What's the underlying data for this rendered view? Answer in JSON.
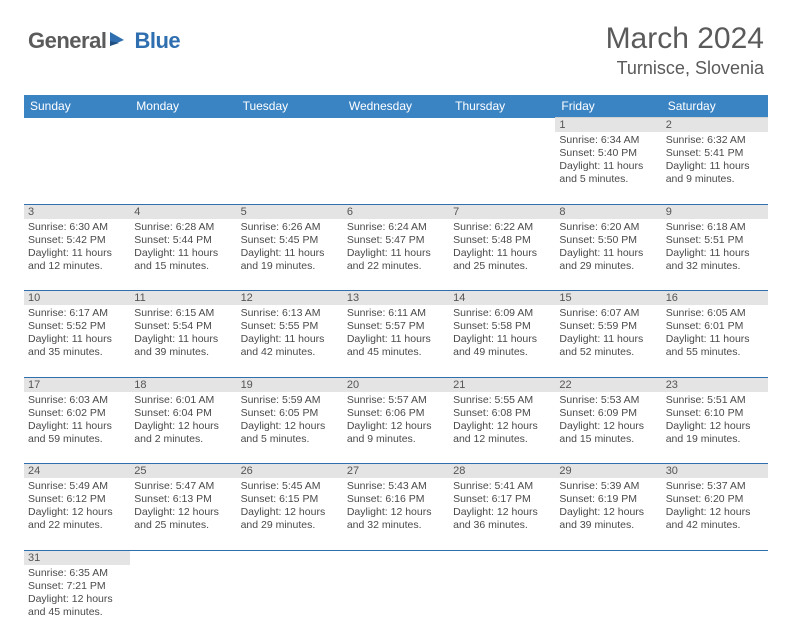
{
  "brand": {
    "part1": "General",
    "part2": "Blue"
  },
  "title": "March 2024",
  "location": "Turnisce, Slovenia",
  "colors": {
    "header_bg": "#3b84c4",
    "header_text": "#ffffff",
    "daynum_bg": "#e4e4e4",
    "row_divider": "#2f6fb0",
    "text": "#4a4a4a",
    "brand_dark": "#5b5b5b",
    "brand_blue": "#2f6fb0"
  },
  "day_headers": [
    "Sunday",
    "Monday",
    "Tuesday",
    "Wednesday",
    "Thursday",
    "Friday",
    "Saturday"
  ],
  "weeks": [
    [
      null,
      null,
      null,
      null,
      null,
      {
        "n": "1",
        "sr": "Sunrise: 6:34 AM",
        "ss": "Sunset: 5:40 PM",
        "d1": "Daylight: 11 hours",
        "d2": "and 5 minutes."
      },
      {
        "n": "2",
        "sr": "Sunrise: 6:32 AM",
        "ss": "Sunset: 5:41 PM",
        "d1": "Daylight: 11 hours",
        "d2": "and 9 minutes."
      }
    ],
    [
      {
        "n": "3",
        "sr": "Sunrise: 6:30 AM",
        "ss": "Sunset: 5:42 PM",
        "d1": "Daylight: 11 hours",
        "d2": "and 12 minutes."
      },
      {
        "n": "4",
        "sr": "Sunrise: 6:28 AM",
        "ss": "Sunset: 5:44 PM",
        "d1": "Daylight: 11 hours",
        "d2": "and 15 minutes."
      },
      {
        "n": "5",
        "sr": "Sunrise: 6:26 AM",
        "ss": "Sunset: 5:45 PM",
        "d1": "Daylight: 11 hours",
        "d2": "and 19 minutes."
      },
      {
        "n": "6",
        "sr": "Sunrise: 6:24 AM",
        "ss": "Sunset: 5:47 PM",
        "d1": "Daylight: 11 hours",
        "d2": "and 22 minutes."
      },
      {
        "n": "7",
        "sr": "Sunrise: 6:22 AM",
        "ss": "Sunset: 5:48 PM",
        "d1": "Daylight: 11 hours",
        "d2": "and 25 minutes."
      },
      {
        "n": "8",
        "sr": "Sunrise: 6:20 AM",
        "ss": "Sunset: 5:50 PM",
        "d1": "Daylight: 11 hours",
        "d2": "and 29 minutes."
      },
      {
        "n": "9",
        "sr": "Sunrise: 6:18 AM",
        "ss": "Sunset: 5:51 PM",
        "d1": "Daylight: 11 hours",
        "d2": "and 32 minutes."
      }
    ],
    [
      {
        "n": "10",
        "sr": "Sunrise: 6:17 AM",
        "ss": "Sunset: 5:52 PM",
        "d1": "Daylight: 11 hours",
        "d2": "and 35 minutes."
      },
      {
        "n": "11",
        "sr": "Sunrise: 6:15 AM",
        "ss": "Sunset: 5:54 PM",
        "d1": "Daylight: 11 hours",
        "d2": "and 39 minutes."
      },
      {
        "n": "12",
        "sr": "Sunrise: 6:13 AM",
        "ss": "Sunset: 5:55 PM",
        "d1": "Daylight: 11 hours",
        "d2": "and 42 minutes."
      },
      {
        "n": "13",
        "sr": "Sunrise: 6:11 AM",
        "ss": "Sunset: 5:57 PM",
        "d1": "Daylight: 11 hours",
        "d2": "and 45 minutes."
      },
      {
        "n": "14",
        "sr": "Sunrise: 6:09 AM",
        "ss": "Sunset: 5:58 PM",
        "d1": "Daylight: 11 hours",
        "d2": "and 49 minutes."
      },
      {
        "n": "15",
        "sr": "Sunrise: 6:07 AM",
        "ss": "Sunset: 5:59 PM",
        "d1": "Daylight: 11 hours",
        "d2": "and 52 minutes."
      },
      {
        "n": "16",
        "sr": "Sunrise: 6:05 AM",
        "ss": "Sunset: 6:01 PM",
        "d1": "Daylight: 11 hours",
        "d2": "and 55 minutes."
      }
    ],
    [
      {
        "n": "17",
        "sr": "Sunrise: 6:03 AM",
        "ss": "Sunset: 6:02 PM",
        "d1": "Daylight: 11 hours",
        "d2": "and 59 minutes."
      },
      {
        "n": "18",
        "sr": "Sunrise: 6:01 AM",
        "ss": "Sunset: 6:04 PM",
        "d1": "Daylight: 12 hours",
        "d2": "and 2 minutes."
      },
      {
        "n": "19",
        "sr": "Sunrise: 5:59 AM",
        "ss": "Sunset: 6:05 PM",
        "d1": "Daylight: 12 hours",
        "d2": "and 5 minutes."
      },
      {
        "n": "20",
        "sr": "Sunrise: 5:57 AM",
        "ss": "Sunset: 6:06 PM",
        "d1": "Daylight: 12 hours",
        "d2": "and 9 minutes."
      },
      {
        "n": "21",
        "sr": "Sunrise: 5:55 AM",
        "ss": "Sunset: 6:08 PM",
        "d1": "Daylight: 12 hours",
        "d2": "and 12 minutes."
      },
      {
        "n": "22",
        "sr": "Sunrise: 5:53 AM",
        "ss": "Sunset: 6:09 PM",
        "d1": "Daylight: 12 hours",
        "d2": "and 15 minutes."
      },
      {
        "n": "23",
        "sr": "Sunrise: 5:51 AM",
        "ss": "Sunset: 6:10 PM",
        "d1": "Daylight: 12 hours",
        "d2": "and 19 minutes."
      }
    ],
    [
      {
        "n": "24",
        "sr": "Sunrise: 5:49 AM",
        "ss": "Sunset: 6:12 PM",
        "d1": "Daylight: 12 hours",
        "d2": "and 22 minutes."
      },
      {
        "n": "25",
        "sr": "Sunrise: 5:47 AM",
        "ss": "Sunset: 6:13 PM",
        "d1": "Daylight: 12 hours",
        "d2": "and 25 minutes."
      },
      {
        "n": "26",
        "sr": "Sunrise: 5:45 AM",
        "ss": "Sunset: 6:15 PM",
        "d1": "Daylight: 12 hours",
        "d2": "and 29 minutes."
      },
      {
        "n": "27",
        "sr": "Sunrise: 5:43 AM",
        "ss": "Sunset: 6:16 PM",
        "d1": "Daylight: 12 hours",
        "d2": "and 32 minutes."
      },
      {
        "n": "28",
        "sr": "Sunrise: 5:41 AM",
        "ss": "Sunset: 6:17 PM",
        "d1": "Daylight: 12 hours",
        "d2": "and 36 minutes."
      },
      {
        "n": "29",
        "sr": "Sunrise: 5:39 AM",
        "ss": "Sunset: 6:19 PM",
        "d1": "Daylight: 12 hours",
        "d2": "and 39 minutes."
      },
      {
        "n": "30",
        "sr": "Sunrise: 5:37 AM",
        "ss": "Sunset: 6:20 PM",
        "d1": "Daylight: 12 hours",
        "d2": "and 42 minutes."
      }
    ],
    [
      {
        "n": "31",
        "sr": "Sunrise: 6:35 AM",
        "ss": "Sunset: 7:21 PM",
        "d1": "Daylight: 12 hours",
        "d2": "and 45 minutes."
      },
      null,
      null,
      null,
      null,
      null,
      null
    ]
  ]
}
